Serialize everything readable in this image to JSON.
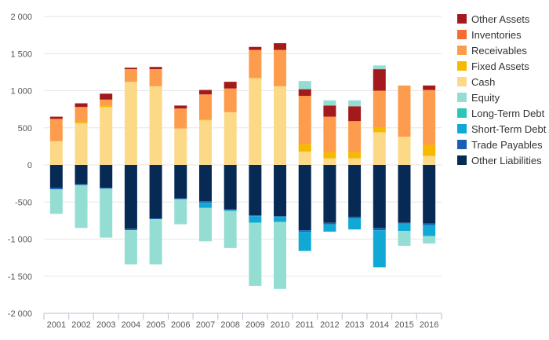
{
  "chart_data": {
    "type": "bar",
    "stacked": true,
    "categories": [
      "2001",
      "2002",
      "2003",
      "2004",
      "2005",
      "2006",
      "2007",
      "2008",
      "2009",
      "2010",
      "2011",
      "2012",
      "2013",
      "2014",
      "2015",
      "2016"
    ],
    "ylim": [
      -2000,
      2000
    ],
    "yticks": [
      2000,
      1500,
      1000,
      500,
      0,
      -500,
      -1000,
      -1500,
      -2000
    ],
    "ytick_labels": [
      "2 000",
      "1 500",
      "1 000",
      "500",
      "0",
      "-500",
      "-1 000",
      "-1 500",
      "-2 000"
    ],
    "grid": true,
    "legend_position": "right",
    "series": [
      {
        "name": "Other Liabilities",
        "color": "#062a53",
        "values": [
          -310,
          -260,
          -310,
          -860,
          -720,
          -450,
          -490,
          -600,
          -680,
          -690,
          -880,
          -780,
          -700,
          -850,
          -780,
          -790
        ]
      },
      {
        "name": "Trade Payables",
        "color": "#1a5fb4",
        "values": [
          -20,
          -10,
          -10,
          -20,
          -10,
          -10,
          -20,
          -10,
          -10,
          -10,
          -20,
          -20,
          -20,
          -30,
          -10,
          -20
        ]
      },
      {
        "name": "Short-Term Debt",
        "color": "#12a8d6",
        "values": [
          0,
          0,
          0,
          0,
          0,
          0,
          -70,
          -10,
          -90,
          -70,
          -260,
          -100,
          -150,
          -500,
          -100,
          -150
        ]
      },
      {
        "name": "Long-Term Debt",
        "color": "#2ec4b6",
        "values": [
          0,
          0,
          0,
          0,
          0,
          0,
          0,
          0,
          0,
          0,
          0,
          0,
          0,
          0,
          0,
          0
        ]
      },
      {
        "name": "Equity",
        "color": "#93ddd3",
        "values": [
          -330,
          -580,
          -660,
          -460,
          -610,
          -340,
          -450,
          -500,
          -850,
          -900,
          0,
          0,
          0,
          0,
          -200,
          -100
        ]
      },
      {
        "name": "Cash",
        "color": "#fbd987",
        "values": [
          320,
          560,
          780,
          1120,
          1060,
          490,
          600,
          710,
          1170,
          1060,
          180,
          90,
          90,
          440,
          380,
          120
        ]
      },
      {
        "name": "Fixed Assets",
        "color": "#f6b900",
        "values": [
          0,
          20,
          20,
          0,
          0,
          0,
          10,
          0,
          0,
          0,
          100,
          80,
          80,
          60,
          0,
          150
        ]
      },
      {
        "name": "Receivables",
        "color": "#fd9c4c",
        "values": [
          300,
          200,
          80,
          170,
          230,
          270,
          340,
          320,
          380,
          490,
          650,
          480,
          420,
          500,
          690,
          740
        ]
      },
      {
        "name": "Inventories",
        "color": "#f66b30",
        "values": [
          0,
          0,
          0,
          0,
          0,
          0,
          0,
          0,
          0,
          0,
          0,
          0,
          0,
          0,
          0,
          0
        ]
      },
      {
        "name": "Other Assets",
        "color": "#a3191c",
        "values": [
          30,
          50,
          80,
          20,
          30,
          40,
          60,
          90,
          40,
          90,
          90,
          150,
          200,
          290,
          0,
          60
        ]
      }
    ],
    "legend_order": [
      "Other Assets",
      "Inventories",
      "Receivables",
      "Fixed Assets",
      "Cash",
      "Equity",
      "Long-Term Debt",
      "Short-Term Debt",
      "Trade Payables",
      "Other Liabilities"
    ]
  },
  "extra_segments": [
    {
      "category": "2011",
      "color": "#93ddd3",
      "value": 110,
      "note_label": "Equity"
    },
    {
      "category": "2012",
      "color": "#93ddd3",
      "value": 70,
      "note_label": "Equity"
    },
    {
      "category": "2013",
      "color": "#93ddd3",
      "value": 80,
      "note_label": "Equity"
    },
    {
      "category": "2014",
      "color": "#93ddd3",
      "value": 50,
      "note_label": "Equity"
    }
  ]
}
